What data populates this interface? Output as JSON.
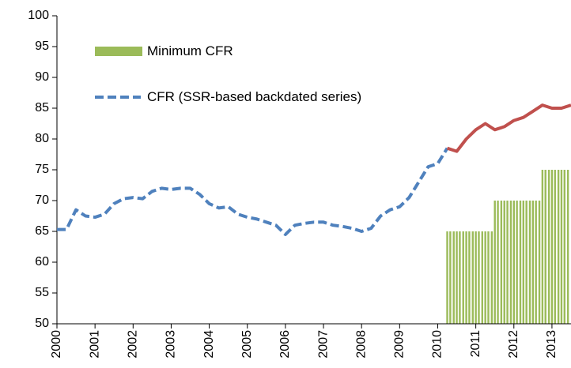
{
  "chart_data": {
    "type": "line",
    "xlim": [
      2000,
      2013.5
    ],
    "xticks": [
      2000,
      2001,
      2002,
      2003,
      2004,
      2005,
      2006,
      2007,
      2008,
      2009,
      2010,
      2011,
      2012,
      2013
    ],
    "ylim": [
      50,
      100
    ],
    "yticks": [
      50,
      55,
      60,
      65,
      70,
      75,
      80,
      85,
      90,
      95,
      100
    ],
    "grid": false,
    "series": [
      {
        "name": "Minimum CFR",
        "type": "bar",
        "color": "#9bbb59",
        "x": [
          2010.25,
          2010.33,
          2010.42,
          2010.5,
          2010.58,
          2010.67,
          2010.75,
          2010.83,
          2010.92,
          2011.0,
          2011.08,
          2011.17,
          2011.25,
          2011.33,
          2011.42,
          2011.5,
          2011.58,
          2011.67,
          2011.75,
          2011.83,
          2011.92,
          2012.0,
          2012.08,
          2012.17,
          2012.25,
          2012.33,
          2012.42,
          2012.5,
          2012.58,
          2012.67,
          2012.75,
          2012.83,
          2012.92,
          2013.0,
          2013.08,
          2013.17,
          2013.25,
          2013.33,
          2013.42
        ],
        "values": [
          65,
          65,
          65,
          65,
          65,
          65,
          65,
          65,
          65,
          65,
          65,
          65,
          65,
          65,
          65,
          70,
          70,
          70,
          70,
          70,
          70,
          70,
          70,
          70,
          70,
          70,
          70,
          70,
          70,
          70,
          75,
          75,
          75,
          75,
          75,
          75,
          75,
          75,
          75
        ]
      },
      {
        "name": "CFR (SSR-based backdated series)",
        "type": "line",
        "dashed": true,
        "color": "#4f81bd",
        "x": [
          2000.0,
          2000.25,
          2000.5,
          2000.75,
          2001.0,
          2001.25,
          2001.5,
          2001.75,
          2002.0,
          2002.25,
          2002.5,
          2002.75,
          2003.0,
          2003.25,
          2003.5,
          2003.75,
          2004.0,
          2004.25,
          2004.5,
          2004.75,
          2005.0,
          2005.25,
          2005.5,
          2005.75,
          2006.0,
          2006.25,
          2006.5,
          2006.75,
          2007.0,
          2007.25,
          2007.5,
          2007.75,
          2008.0,
          2008.25,
          2008.5,
          2008.75,
          2009.0,
          2009.25,
          2009.5,
          2009.75,
          2010.0,
          2010.25
        ],
        "values": [
          65.3,
          65.3,
          68.5,
          67.5,
          67.3,
          67.8,
          69.5,
          70.3,
          70.5,
          70.3,
          71.5,
          72.0,
          71.8,
          72.0,
          72.0,
          71.0,
          69.5,
          68.8,
          69.0,
          67.8,
          67.3,
          67.0,
          66.5,
          66.0,
          64.5,
          66.0,
          66.3,
          66.5,
          66.5,
          66.0,
          65.8,
          65.5,
          65.0,
          65.5,
          67.5,
          68.5,
          69.0,
          70.5,
          73.0,
          75.5,
          76.0,
          78.5
        ]
      },
      {
        "type": "line",
        "dashed": false,
        "color": "#c0504d",
        "x": [
          2010.25,
          2010.5,
          2010.75,
          2011.0,
          2011.25,
          2011.5,
          2011.75,
          2012.0,
          2012.25,
          2012.5,
          2012.75,
          2013.0,
          2013.25,
          2013.5
        ],
        "values": [
          78.5,
          78.0,
          80.0,
          81.5,
          82.5,
          81.5,
          82.0,
          83.0,
          83.5,
          84.5,
          85.5,
          85.0,
          85.0,
          85.5
        ]
      }
    ]
  }
}
